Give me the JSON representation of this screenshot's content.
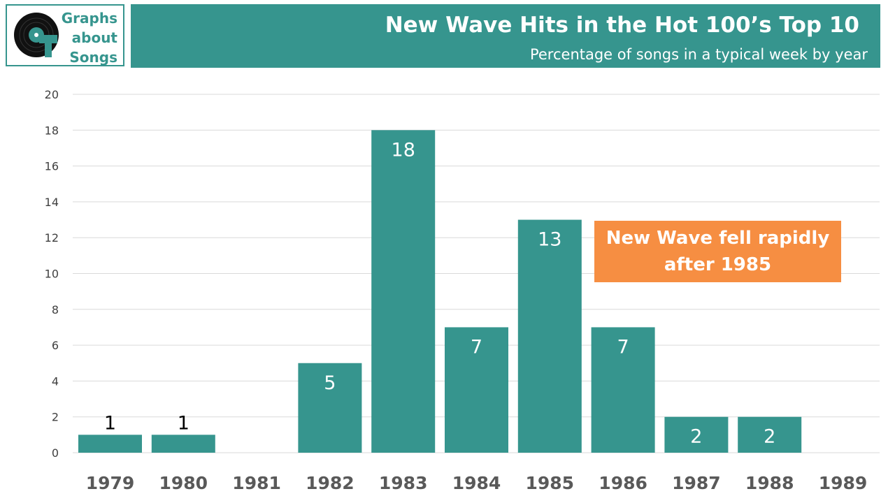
{
  "logo": {
    "line1": "Graphs",
    "line2": "about",
    "line3": "Songs"
  },
  "header": {
    "title": "New Wave Hits in the Hot 100’s Top 10",
    "subtitle": "Percentage of songs in a typical week by year"
  },
  "annotation": {
    "line1": "New Wave fell rapidly",
    "line2": "after 1985"
  },
  "colors": {
    "bar": "#36958e",
    "callout": "#f68e42",
    "grid": "#d9d9d9",
    "tick_text": "#404040",
    "category_text": "#595959"
  },
  "chart_data": {
    "type": "bar",
    "categories": [
      "1979",
      "1980",
      "1981",
      "1982",
      "1983",
      "1984",
      "1985",
      "1986",
      "1987",
      "1988",
      "1989"
    ],
    "values": [
      1,
      1,
      0,
      5,
      18,
      7,
      13,
      7,
      2,
      2,
      0
    ],
    "data_labels": [
      "1",
      "1",
      "",
      "5",
      "18",
      "7",
      "13",
      "7",
      "2",
      "2",
      ""
    ],
    "yticks": [
      0,
      2,
      4,
      6,
      8,
      10,
      12,
      14,
      16,
      18,
      20
    ],
    "ylim": [
      0,
      20
    ],
    "grid": true,
    "legend": "none",
    "title": "",
    "xlabel": "",
    "ylabel": ""
  }
}
